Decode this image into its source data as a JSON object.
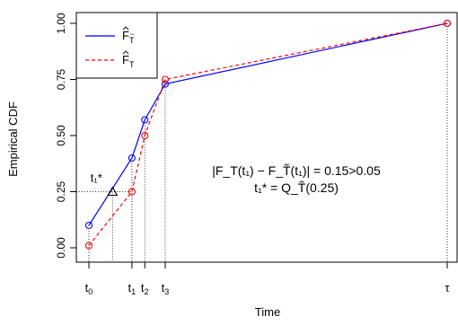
{
  "chart_data": {
    "type": "line",
    "xlabel": "Time",
    "ylabel": "Empirical CDF",
    "xlim": [
      0,
      100
    ],
    "ylim": [
      0,
      1
    ],
    "yticks": [
      0.0,
      0.25,
      0.5,
      0.75,
      1.0
    ],
    "ytick_labels": [
      "0.00",
      "0.25",
      "0.50",
      "0.75",
      "1.00"
    ],
    "xticks": [
      {
        "x": 0,
        "base": "t",
        "sub": "0"
      },
      {
        "x": 12,
        "base": "t",
        "sub": "1"
      },
      {
        "x": 15.6,
        "base": "t",
        "sub": "2"
      },
      {
        "x": 21.3,
        "base": "t",
        "sub": "3"
      },
      {
        "x": 100,
        "base": "τ",
        "sub": ""
      }
    ],
    "series": [
      {
        "name": "F̂_T̃",
        "color": "#0000ff",
        "dash": "solid",
        "x": [
          0,
          12,
          15.6,
          21.3,
          100
        ],
        "y": [
          0.1,
          0.4,
          0.57,
          0.73,
          1.0
        ]
      },
      {
        "name": "F̂_T",
        "color": "#ff0000",
        "dash": "dashed",
        "x": [
          0,
          12,
          15.6,
          21.3,
          100
        ],
        "y": [
          0.01,
          0.25,
          0.5,
          0.75,
          1.0
        ]
      }
    ],
    "marker": {
      "x": 6.6,
      "y": 0.25,
      "label": "t₁*"
    },
    "annotation_lines": [
      "|F_T(t₁) − F_T̃(t₁)| = 0.15>0.05",
      "t₁* = Q_T̃(0.25)"
    ],
    "legend_position": "top-left"
  }
}
